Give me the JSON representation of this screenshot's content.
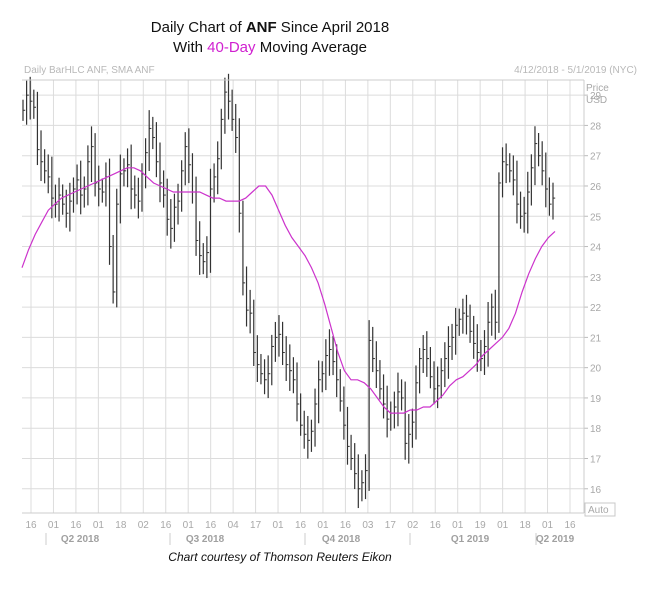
{
  "title": {
    "line1_prefix": "Daily Chart of ",
    "line1_ticker": "ANF",
    "line1_suffix": " Since April 2018",
    "line2_prefix": "With ",
    "line2_highlight": "40-Day",
    "line2_suffix": " Moving Average"
  },
  "credit": "Chart courtesy of Thomson Reuters Eikon",
  "colors": {
    "price": "#333333",
    "sma": "#cc33cc",
    "grid": "#d8d8d8",
    "highlight": "#d020d0"
  },
  "chart_data": {
    "type": "line",
    "header_left": "Daily BarHLC ANF, SMA ANF",
    "header_right": "4/12/2018 - 5/1/2019 (NYC)",
    "y_axis_title": [
      "Price",
      "USD"
    ],
    "auto_label": "Auto",
    "ylim": [
      15.2,
      29.5
    ],
    "y_ticks": [
      16,
      17,
      18,
      19,
      20,
      21,
      22,
      23,
      24,
      25,
      26,
      27,
      28,
      29
    ],
    "x_ticks": [
      "16",
      "01",
      "16",
      "01",
      "18",
      "02",
      "16",
      "01",
      "16",
      "04",
      "17",
      "01",
      "16",
      "01",
      "16",
      "03",
      "17",
      "02",
      "16",
      "01",
      "19",
      "01",
      "18",
      "01",
      "16"
    ],
    "quarters": [
      "Q2 2018",
      "Q3 2018",
      "Q4 2018",
      "Q1 2019",
      "Q2 2019"
    ],
    "grid": true,
    "series": [
      {
        "name": "ANF",
        "style": "HLC bars",
        "values": [
          28.5,
          29.0,
          28.8,
          28.6,
          27.2,
          26.8,
          26.5,
          26.3,
          25.6,
          25.4,
          25.7,
          25.4,
          25.1,
          25.5,
          25.9,
          26.2,
          25.7,
          25.9,
          26.8,
          27.3,
          26.1,
          25.9,
          25.8,
          26.3,
          24.0,
          22.5,
          25.4,
          26.4,
          26.5,
          26.7,
          25.9,
          25.7,
          25.5,
          26.4,
          27.1,
          27.9,
          27.6,
          26.8,
          26.1,
          25.7,
          24.9,
          24.6,
          25.3,
          25.5,
          26.5,
          27.3,
          26.7,
          25.8,
          24.2,
          23.7,
          23.5,
          23.8,
          25.9,
          26.3,
          26.9,
          28.2,
          29.1,
          28.8,
          28.2,
          27.6,
          25.1,
          22.8,
          21.9,
          21.8,
          20.5,
          20.1,
          19.8,
          19.6,
          19.8,
          20.7,
          21.0,
          21.1,
          20.5,
          20.1,
          19.9,
          19.6,
          18.8,
          18.1,
          17.8,
          17.6,
          17.9,
          18.8,
          19.6,
          19.8,
          20.4,
          20.6,
          20.2,
          19.6,
          18.9,
          18.1,
          17.4,
          17.0,
          16.5,
          16.0,
          16.2,
          16.6,
          20.9,
          20.3,
          19.9,
          19.3,
          18.8,
          18.3,
          18.5,
          18.7,
          19.2,
          19.0,
          17.5,
          17.8,
          18.2,
          19.5,
          20.3,
          20.6,
          20.3,
          19.7,
          19.3,
          19.4,
          19.9,
          20.3,
          20.7,
          21.0,
          21.4,
          21.6,
          21.8,
          21.7,
          21.2,
          20.8,
          20.5,
          20.3,
          20.7,
          21.5,
          22.0,
          21.5,
          26.1,
          26.8,
          26.7,
          26.5,
          26.2,
          25.4,
          25.0,
          25.1,
          25.8,
          26.6,
          27.4,
          27.0,
          26.5,
          25.9,
          25.4,
          25.6
        ]
      },
      {
        "name": "SMA ANF",
        "style": "40-day moving average",
        "values": [
          23.3,
          23.9,
          24.4,
          24.8,
          25.2,
          25.4,
          25.6,
          25.7,
          25.8,
          25.9,
          26.0,
          26.1,
          26.2,
          26.3,
          26.4,
          26.5,
          26.6,
          26.6,
          26.5,
          26.3,
          26.1,
          26.0,
          25.9,
          25.8,
          25.8,
          25.8,
          25.8,
          25.8,
          25.7,
          25.6,
          25.6,
          25.5,
          25.5,
          25.5,
          25.6,
          25.8,
          26.0,
          26.0,
          25.7,
          25.2,
          24.7,
          24.3,
          24.0,
          23.7,
          23.3,
          22.8,
          22.1,
          21.3,
          20.5,
          19.9,
          19.6,
          19.6,
          19.5,
          19.3,
          19.0,
          18.7,
          18.5,
          18.5,
          18.5,
          18.6,
          18.6,
          18.7,
          18.7,
          18.9,
          19.1,
          19.4,
          19.6,
          19.7,
          19.9,
          20.1,
          20.4,
          20.6,
          20.8,
          21.0,
          21.3,
          21.8,
          22.5,
          23.1,
          23.6,
          24.0,
          24.3,
          24.5
        ]
      }
    ]
  }
}
